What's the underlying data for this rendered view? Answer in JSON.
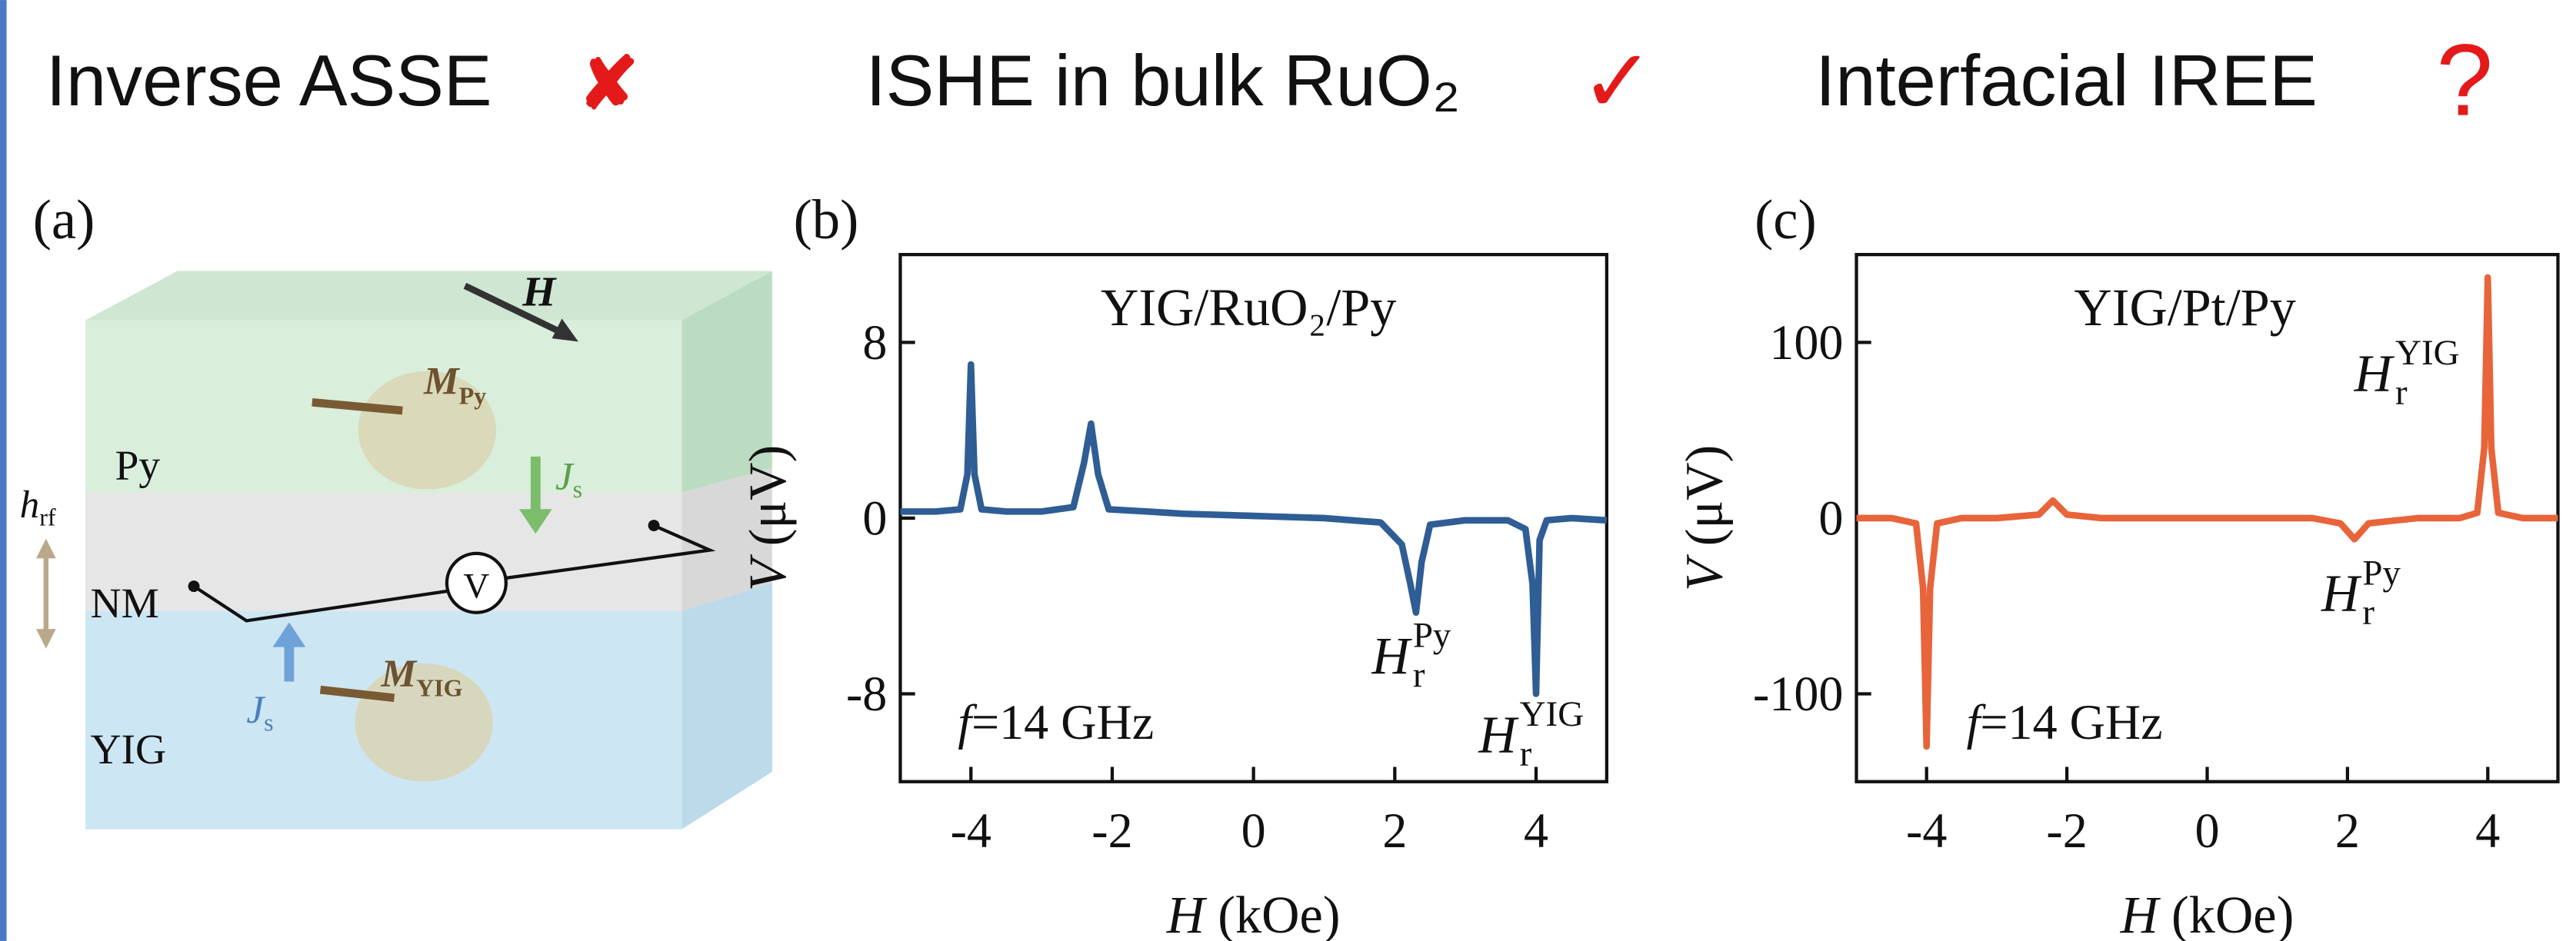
{
  "headings": [
    {
      "text": "Inverse ASSE",
      "mark": "✘"
    },
    {
      "text": "ISHE in bulk RuO₂",
      "mark": "✓"
    },
    {
      "text": "Interfacial IREE",
      "mark": "?"
    }
  ],
  "diagram": {
    "panel": "(a)",
    "field": "H",
    "m_py": {
      "symbol": "M",
      "sub": "Py"
    },
    "layer_py": "Py",
    "js_top": {
      "symbol": "J",
      "sub": "s"
    },
    "hrf": {
      "symbol": "h",
      "sub": "rf"
    },
    "layer_nm": "NM",
    "voltmeter": "V",
    "layer_yig": "YIG",
    "m_yig": {
      "symbol": "M",
      "sub": "YIG"
    },
    "js_bottom": {
      "symbol": "J",
      "sub": "s"
    }
  },
  "chart_data": [
    {
      "type": "line",
      "panel": "(b)",
      "title": "YIG/RuO₂/Py",
      "x_label": {
        "symbol": "H",
        "text": "(kOe)"
      },
      "y_label": {
        "symbol": "V",
        "text": "(μV)"
      },
      "freq": {
        "symbol": "f",
        "text": "=14 GHz"
      },
      "annotations": [
        {
          "symbol": "H",
          "sub": "r",
          "sup": "Py"
        },
        {
          "symbol": "H",
          "sub": "r",
          "sup": "YIG"
        }
      ],
      "x": [
        -5,
        -4.5,
        -4.15,
        -4.05,
        -4.0,
        -3.95,
        -3.85,
        -3.5,
        -3,
        -2.55,
        -2.4,
        -2.3,
        -2.2,
        -2.05,
        -1.5,
        -1,
        0,
        1,
        1.8,
        2.1,
        2.22,
        2.3,
        2.38,
        2.5,
        3,
        3.6,
        3.85,
        3.95,
        4.0,
        4.05,
        4.15,
        4.5,
        5
      ],
      "values": [
        0.3,
        0.3,
        0.4,
        2.0,
        7.0,
        2.0,
        0.4,
        0.3,
        0.3,
        0.5,
        2.5,
        4.3,
        2.0,
        0.4,
        0.3,
        0.2,
        0.1,
        0,
        -0.2,
        -1.2,
        -3,
        -4.3,
        -2,
        -0.3,
        -0.1,
        -0.1,
        -0.5,
        -3,
        -8,
        -1,
        -0.1,
        0,
        -0.1
      ],
      "color": "#2f5d95",
      "xlim": [
        -5,
        5
      ],
      "ylim": [
        -12,
        12
      ],
      "xticks": [
        -4,
        -2,
        0,
        2,
        4
      ],
      "yticks": [
        -8,
        0,
        8
      ]
    },
    {
      "type": "line",
      "panel": "(c)",
      "title": "YIG/Pt/Py",
      "x_label": {
        "symbol": "H",
        "text": "(kOe)"
      },
      "y_label": {
        "symbol": "V",
        "text": "(μV)"
      },
      "freq": {
        "symbol": "f",
        "text": "=14 GHz"
      },
      "annotations": [
        {
          "symbol": "H",
          "sub": "r",
          "sup": "YIG"
        },
        {
          "symbol": "H",
          "sub": "r",
          "sup": "Py"
        }
      ],
      "x": [
        -5,
        -4.5,
        -4.15,
        -4.05,
        -4.0,
        -3.95,
        -3.85,
        -3.5,
        -3,
        -2.4,
        -2.2,
        -2.0,
        -1.5,
        0,
        1.5,
        1.9,
        2.1,
        2.3,
        3,
        3.6,
        3.85,
        3.95,
        4.0,
        4.05,
        4.15,
        4.5,
        5
      ],
      "values": [
        0,
        0,
        -3,
        -40,
        -130,
        -40,
        -3,
        0,
        0,
        2,
        10,
        2,
        0,
        0,
        0,
        -3,
        -12,
        -3,
        0,
        0,
        3,
        40,
        137,
        40,
        3,
        0,
        0
      ],
      "color": "#e8643a",
      "xlim": [
        -5,
        5
      ],
      "ylim": [
        -150,
        150
      ],
      "xticks": [
        -4,
        -2,
        0,
        2,
        4
      ],
      "yticks": [
        -100,
        0,
        100
      ]
    }
  ]
}
